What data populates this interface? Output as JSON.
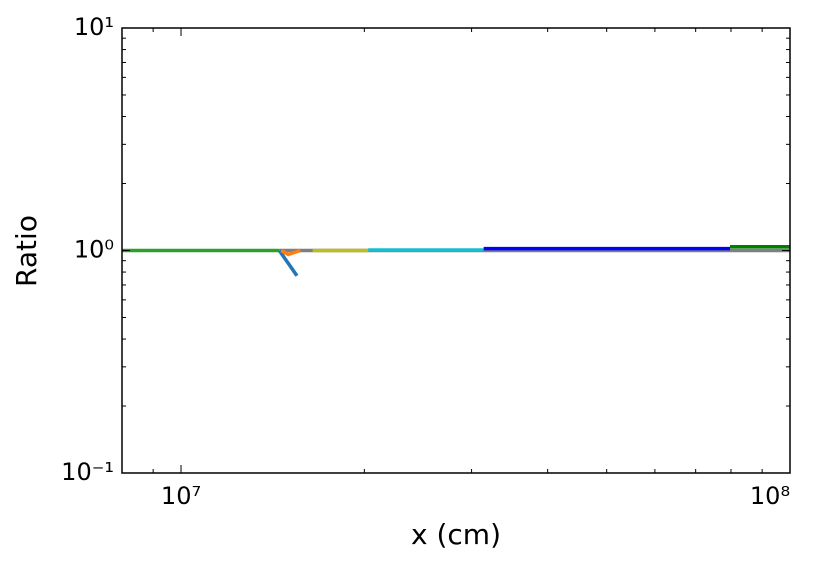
{
  "chart_data": {
    "type": "line",
    "xlabel": "x (cm)",
    "ylabel": "Ratio",
    "xscale": "log",
    "yscale": "log",
    "xlim": [
      8000000,
      100000000
    ],
    "ylim": [
      0.1,
      10
    ],
    "xticks": [
      {
        "value": 10000000,
        "label": "10⁷"
      },
      {
        "value": 100000000,
        "label": "10⁸"
      }
    ],
    "yticks": [
      {
        "value": 0.1,
        "label": "10⁻¹"
      },
      {
        "value": 1,
        "label": "10⁰"
      },
      {
        "value": 10,
        "label": "10¹"
      }
    ],
    "series": [
      {
        "color": "#2ca02c",
        "x": [
          8000000,
          14500000
        ],
        "values": [
          1.0,
          1.0
        ]
      },
      {
        "color": "#7f7f7f",
        "x": [
          14500000,
          16500000,
          31400000,
          100000000
        ],
        "values": [
          1.0,
          1.0,
          1.0,
          1.0
        ]
      },
      {
        "color": "#1f77b4",
        "x": [
          14500000,
          15500000
        ],
        "values": [
          1.0,
          0.77
        ]
      },
      {
        "color": "#ff7f0e",
        "x": [
          14600000,
          15000000,
          15700000
        ],
        "values": [
          1.0,
          0.96,
          1.0
        ]
      },
      {
        "color": "#bcbd22",
        "x": [
          16450000,
          20300000
        ],
        "values": [
          1.0,
          1.0
        ]
      },
      {
        "color": "#17becf",
        "x": [
          20300000,
          31400000
        ],
        "values": [
          1.005,
          1.005
        ]
      },
      {
        "color": "#0000ff",
        "x": [
          31400000,
          79700000
        ],
        "values": [
          1.02,
          1.02
        ]
      },
      {
        "color": "#008000",
        "x": [
          79700000,
          100000000
        ],
        "values": [
          1.04,
          1.04
        ]
      }
    ]
  }
}
